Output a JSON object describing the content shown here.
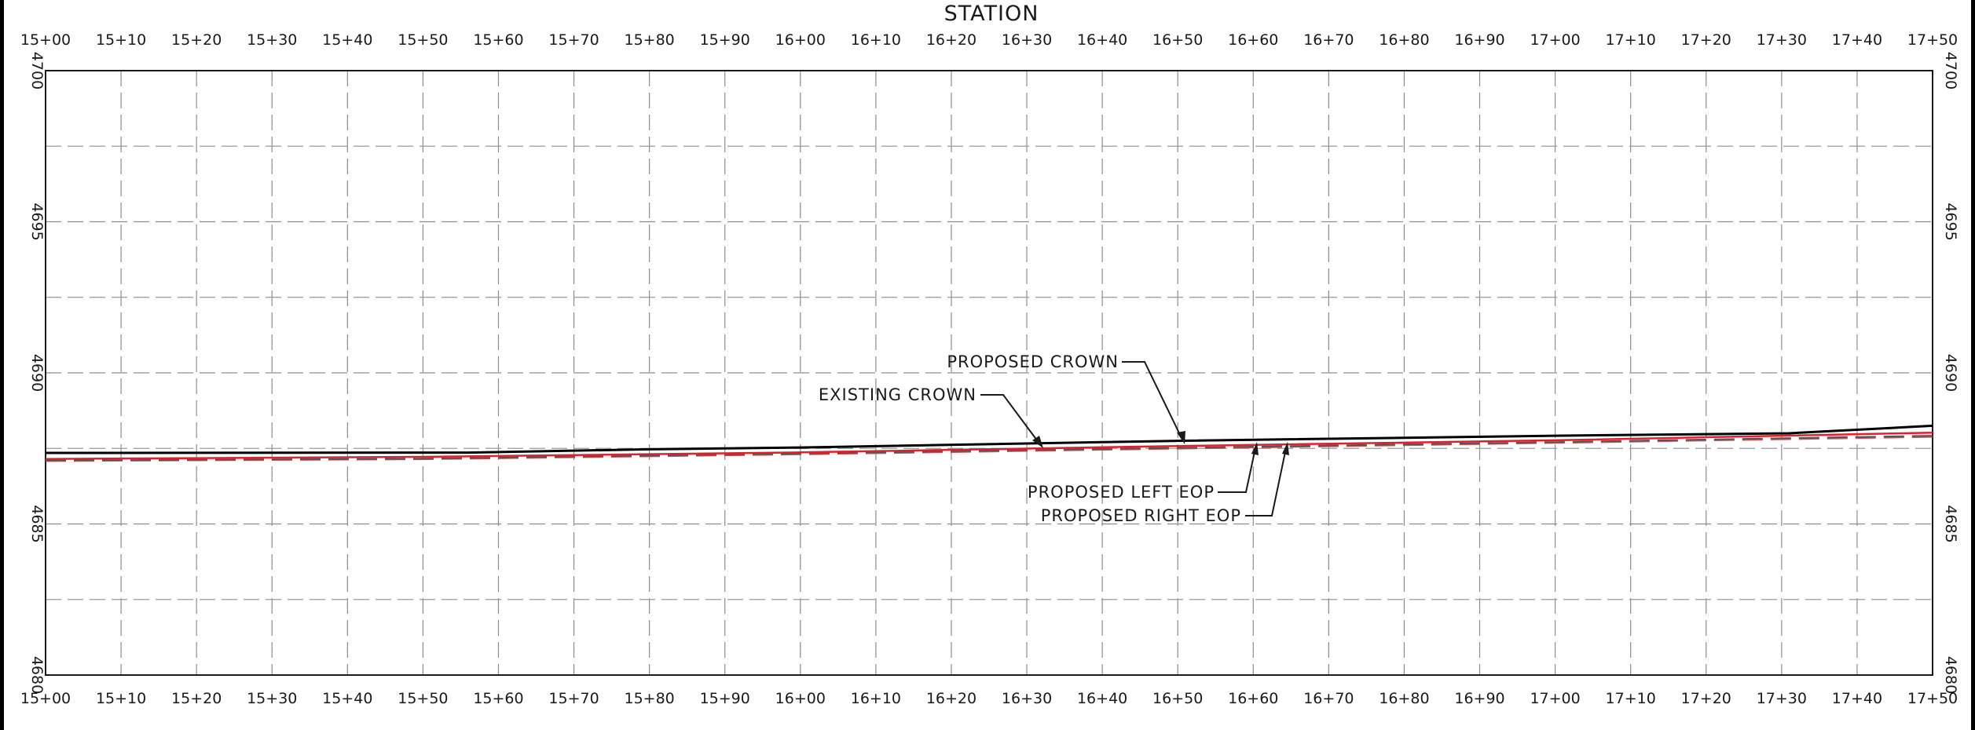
{
  "chart_data": {
    "type": "line",
    "title": "STATION",
    "xlabel": "STATION",
    "ylabel": "",
    "x_unit": "station (hundreds of feet, 15+00 = 1500 ft)",
    "xlim": [
      1500,
      1750
    ],
    "ylim": [
      4680,
      4700
    ],
    "grid": true,
    "x_ticks": [
      1500,
      1510,
      1520,
      1530,
      1540,
      1550,
      1560,
      1570,
      1580,
      1590,
      1600,
      1610,
      1620,
      1630,
      1640,
      1650,
      1660,
      1670,
      1680,
      1690,
      1700,
      1710,
      1720,
      1730,
      1740,
      1750
    ],
    "x_tick_labels": [
      "15+00",
      "15+10",
      "15+20",
      "15+30",
      "15+40",
      "15+50",
      "15+60",
      "15+70",
      "15+80",
      "15+90",
      "16+00",
      "16+10",
      "16+20",
      "16+30",
      "16+40",
      "16+50",
      "16+60",
      "16+70",
      "16+80",
      "16+90",
      "17+00",
      "17+10",
      "17+20",
      "17+30",
      "17+40",
      "17+50"
    ],
    "y_ticks": [
      4680,
      4685,
      4690,
      4695,
      4700
    ],
    "y_tick_labels": [
      "4680",
      "4685",
      "4690",
      "4695",
      "4700"
    ],
    "y_minor_grid": [
      4682.5,
      4687.5,
      4692.5,
      4697.5
    ],
    "series": [
      {
        "name": "EXISTING CROWN",
        "color": "#000000",
        "style": "solid",
        "x": [
          1500,
          1556,
          1580,
          1600,
          1650,
          1700,
          1731,
          1750
        ],
        "y": [
          4687.35,
          4687.36,
          4687.47,
          4687.53,
          4687.75,
          4687.92,
          4688.0,
          4688.25
        ]
      },
      {
        "name": "PROPOSED CROWN",
        "color": "#e0202a",
        "style": "solid",
        "x": [
          1500,
          1550,
          1600,
          1650,
          1700,
          1750
        ],
        "y": [
          4687.15,
          4687.22,
          4687.37,
          4687.58,
          4687.77,
          4688.02
        ]
      },
      {
        "name": "PROPOSED LEFT EOP",
        "color": "#555555",
        "style": "dashed",
        "x": [
          1500,
          1550,
          1600,
          1650,
          1700,
          1750
        ],
        "y": [
          4687.1,
          4687.16,
          4687.33,
          4687.52,
          4687.71,
          4687.92
        ]
      },
      {
        "name": "PROPOSED RIGHT EOP",
        "color": "#b85a5a",
        "style": "dashed",
        "x": [
          1500,
          1550,
          1600,
          1650,
          1700,
          1750
        ],
        "y": [
          4687.08,
          4687.14,
          4687.3,
          4687.49,
          4687.68,
          4687.88
        ]
      }
    ],
    "annotations": [
      {
        "text": "PROPOSED CROWN",
        "points_to": {
          "x": 1650,
          "y": 4687.62
        }
      },
      {
        "text": "EXISTING CROWN",
        "points_to": {
          "x": 1632,
          "y": 4687.5
        }
      },
      {
        "text": "PROPOSED LEFT EOP",
        "points_to": {
          "x": 1660,
          "y": 4687.62
        }
      },
      {
        "text": "PROPOSED RIGHT EOP",
        "points_to": {
          "x": 1665,
          "y": 4687.58
        }
      }
    ],
    "colors": {
      "grid": "#9a9a9a",
      "frame": "#1a1a1a",
      "sheet_border": "#000000"
    }
  }
}
